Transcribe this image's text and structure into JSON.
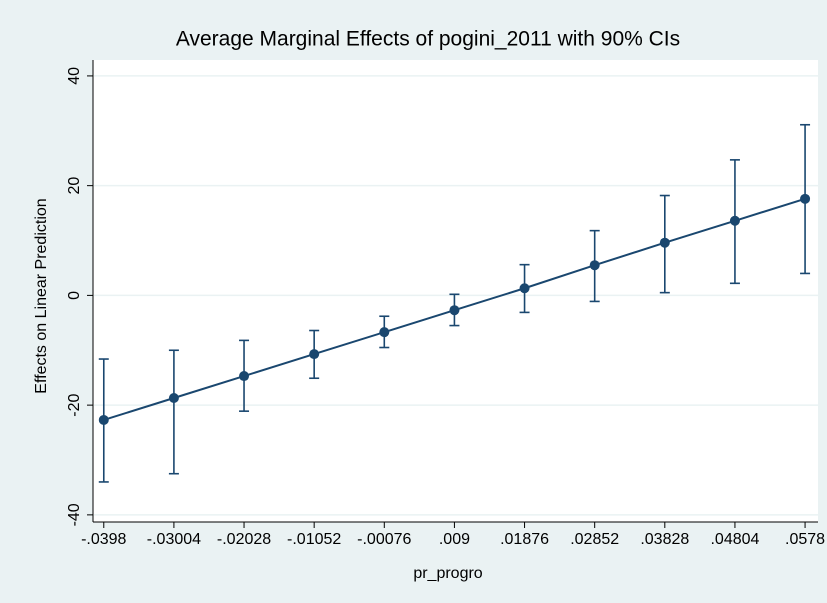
{
  "chart_data": {
    "type": "errorbar",
    "title": "Average Marginal Effects of pogini_2011 with 90% CIs",
    "xlabel": "pr_progro",
    "ylabel": "Effects on Linear Prediction",
    "x": [
      -0.0398,
      -0.03004,
      -0.02028,
      -0.01052,
      -0.00076,
      0.009,
      0.01876,
      0.02852,
      0.03828,
      0.04804,
      0.0578
    ],
    "values": [
      -22.7,
      -18.7,
      -14.7,
      -10.7,
      -6.7,
      -2.7,
      1.3,
      5.5,
      9.6,
      13.6,
      17.6
    ],
    "lower": [
      -34.0,
      -32.5,
      -21.1,
      -15.1,
      -9.5,
      -5.5,
      -3.1,
      -1.1,
      0.5,
      2.2,
      4.0
    ],
    "upper": [
      -11.6,
      -10.0,
      -8.2,
      -6.4,
      -3.8,
      0.2,
      5.6,
      11.8,
      18.2,
      24.7,
      31.1
    ],
    "color": "#1a476f",
    "xlim": [
      -0.0413,
      0.0596
    ],
    "ylim": [
      -41.3,
      42.9
    ],
    "xticks": [
      {
        "value": -0.0398,
        "label": "-.0398"
      },
      {
        "value": -0.03004,
        "label": "-.03004"
      },
      {
        "value": -0.02028,
        "label": "-.02028"
      },
      {
        "value": -0.01052,
        "label": "-.01052"
      },
      {
        "value": -0.00076,
        "label": "-.00076"
      },
      {
        "value": 0.009,
        "label": ".009"
      },
      {
        "value": 0.01876,
        "label": ".01876"
      },
      {
        "value": 0.02852,
        "label": ".02852"
      },
      {
        "value": 0.03828,
        "label": ".03828"
      },
      {
        "value": 0.04804,
        "label": ".04804"
      },
      {
        "value": 0.0578,
        "label": ".0578"
      }
    ],
    "yticks": [
      -40,
      -20,
      0,
      20,
      40
    ],
    "grid": true
  }
}
